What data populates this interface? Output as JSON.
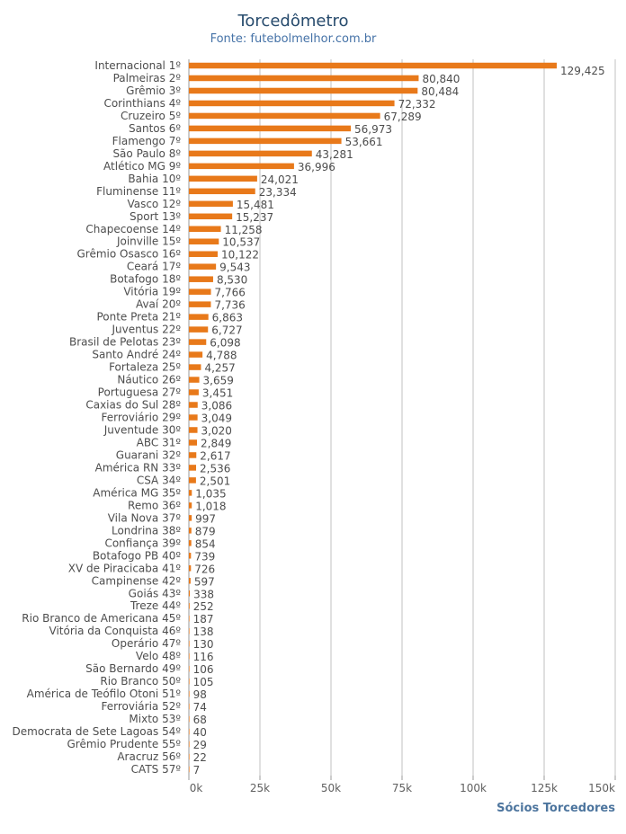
{
  "chart_data": {
    "type": "bar",
    "orientation": "horizontal",
    "title": "Torcedômetro",
    "subtitle": "Fonte: futebolmelhor.com.br",
    "xlabel": "Sócios Torcedores",
    "ylabel": "",
    "xlim": [
      0,
      150000
    ],
    "ticks": [
      0,
      25000,
      50000,
      75000,
      100000,
      125000,
      150000
    ],
    "tick_labels": [
      "0k",
      "25k",
      "50k",
      "75k",
      "100k",
      "125k",
      "150k"
    ],
    "grid": true,
    "colors": {
      "bar": "#e8791a",
      "grid": "#c0c0c0",
      "axis": "#9a9a9a"
    },
    "categories": [
      "Internacional 1º",
      "Palmeiras 2º",
      "Grêmio 3º",
      "Corinthians 4º",
      "Cruzeiro 5º",
      "Santos 6º",
      "Flamengo 7º",
      "São Paulo 8º",
      "Atlético MG 9º",
      "Bahia 10º",
      "Fluminense 11º",
      "Vasco 12º",
      "Sport 13º",
      "Chapecoense 14º",
      "Joinville 15º",
      "Grêmio Osasco 16º",
      "Ceará 17º",
      "Botafogo 18º",
      "Vitória 19º",
      "Avaí 20º",
      "Ponte Preta 21º",
      "Juventus 22º",
      "Brasil de Pelotas 23º",
      "Santo André 24º",
      "Fortaleza 25º",
      "Náutico 26º",
      "Portuguesa 27º",
      "Caxias do Sul 28º",
      "Ferroviário 29º",
      "Juventude 30º",
      "ABC 31º",
      "Guarani 32º",
      "América RN 33º",
      "CSA 34º",
      "América MG 35º",
      "Remo 36º",
      "Vila Nova 37º",
      "Londrina 38º",
      "Confiança 39º",
      "Botafogo PB 40º",
      "XV de Piracicaba 41º",
      "Campinense 42º",
      "Goiás 43º",
      "Treze 44º",
      "Rio Branco de Americana 45º",
      "Vitória da Conquista 46º",
      "Operário 47º",
      "Velo 48º",
      "São Bernardo 49º",
      "Rio Branco 50º",
      "América de Teófilo Otoni 51º",
      "Ferroviária 52º",
      "Mixto 53º",
      "Democrata de Sete Lagoas 54º",
      "Grêmio Prudente 55º",
      "Aracruz 56º",
      "CATS 57º"
    ],
    "values": [
      129425,
      80840,
      80484,
      72332,
      67289,
      56973,
      53661,
      43281,
      36996,
      24021,
      23334,
      15481,
      15237,
      11258,
      10537,
      10122,
      9543,
      8530,
      7766,
      7736,
      6863,
      6727,
      6098,
      4788,
      4257,
      3659,
      3451,
      3086,
      3049,
      3020,
      2849,
      2617,
      2536,
      2501,
      1035,
      1018,
      997,
      879,
      854,
      739,
      726,
      597,
      338,
      252,
      187,
      138,
      130,
      116,
      106,
      105,
      98,
      74,
      68,
      40,
      29,
      22,
      7
    ],
    "value_labels": [
      "129,425",
      "80,840",
      "80,484",
      "72,332",
      "67,289",
      "56,973",
      "53,661",
      "43,281",
      "36,996",
      "24,021",
      "23,334",
      "15,481",
      "15,237",
      "11,258",
      "10,537",
      "10,122",
      "9,543",
      "8,530",
      "7,766",
      "7,736",
      "6,863",
      "6,727",
      "6,098",
      "4,788",
      "4,257",
      "3,659",
      "3,451",
      "3,086",
      "3,049",
      "3,020",
      "2,849",
      "2,617",
      "2,536",
      "2,501",
      "1,035",
      "1,018",
      "997",
      "879",
      "854",
      "739",
      "726",
      "597",
      "338",
      "252",
      "187",
      "138",
      "130",
      "116",
      "106",
      "105",
      "98",
      "74",
      "68",
      "40",
      "29",
      "22",
      "7"
    ]
  }
}
